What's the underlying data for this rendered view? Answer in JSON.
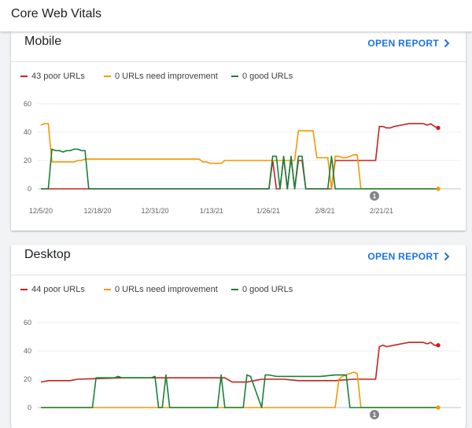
{
  "page": {
    "title": "Core Web Vitals"
  },
  "cards": [
    {
      "name": "Mobile",
      "action": "OPEN REPORT",
      "legend": [
        "43 poor URLs",
        "0 URLs need improvement",
        "0 good URLs"
      ],
      "chart_data": {
        "type": "line",
        "x_tick_labels": [
          "12/5/20",
          "12/18/20",
          "12/31/20",
          "1/13/21",
          "1/26/21",
          "2/8/21",
          "2/21/21"
        ],
        "y_tick_labels": [
          "0",
          "20",
          "40",
          "60"
        ],
        "ylim": [
          0,
          60
        ],
        "annotation": "1",
        "series": [
          {
            "name": "43 poor URLs",
            "color": "#c5221f",
            "x": [
              0,
              62,
              63,
              64,
              65,
              66,
              67,
              68,
              69,
              70,
              71,
              72,
              73,
              79,
              80,
              81,
              82,
              83,
              84,
              85,
              86,
              87,
              91,
              92,
              93,
              94,
              95,
              96,
              98,
              100,
              102,
              104,
              105,
              106,
              107,
              108
            ],
            "y": [
              0,
              0,
              20,
              0,
              0,
              22,
              0,
              22,
              0,
              20,
              20,
              0,
              0,
              0,
              20,
              20,
              20,
              20,
              20,
              20,
              20,
              20,
              20,
              44,
              44,
              43,
              43,
              44,
              45,
              46,
              46,
              46,
              45,
              46,
              44,
              43
            ]
          },
          {
            "name": "0 URLs need improvement",
            "color": "#f29900",
            "x": [
              0,
              1,
              2,
              3,
              9,
              10,
              11,
              12,
              43,
              44,
              45,
              46,
              48,
              49,
              50,
              60,
              61,
              62,
              63,
              64,
              65,
              66,
              67,
              68,
              69,
              70,
              73,
              74,
              75,
              76,
              77,
              78,
              79,
              80,
              81,
              82,
              83,
              84,
              85,
              86,
              87,
              88,
              108
            ],
            "y": [
              45,
              46,
              46,
              19,
              19,
              20,
              20,
              21,
              21,
              19,
              19,
              18,
              18,
              18,
              20,
              20,
              20,
              20,
              20,
              20,
              20,
              20,
              20,
              20,
              20,
              41,
              41,
              41,
              22,
              22,
              22,
              22,
              0,
              23,
              23,
              22,
              22,
              23,
              24,
              24,
              0,
              0,
              0
            ]
          },
          {
            "name": "0 good URLs",
            "color": "#188038",
            "x": [
              0,
              2,
              3,
              4,
              5,
              6,
              7,
              8,
              9,
              10,
              11,
              12,
              13,
              62,
              63,
              64,
              65,
              66,
              67,
              68,
              69,
              70,
              71,
              72,
              73,
              77,
              78,
              79,
              80,
              108
            ],
            "y": [
              0,
              0,
              28,
              27,
              27,
              26,
              27,
              27,
              28,
              28,
              27,
              27,
              0,
              0,
              23,
              23,
              0,
              23,
              0,
              23,
              0,
              23,
              23,
              0,
              0,
              0,
              0,
              23,
              0,
              0
            ]
          }
        ]
      }
    },
    {
      "name": "Desktop",
      "action": "OPEN REPORT",
      "legend": [
        "44 poor URLs",
        "0 URLs need improvement",
        "0 good URLs"
      ],
      "chart_data": {
        "type": "line",
        "y_tick_labels": [
          "0",
          "20",
          "40",
          "60"
        ],
        "ylim": [
          0,
          60
        ],
        "annotation": "1",
        "series": [
          {
            "name": "44 poor URLs",
            "color": "#c5221f",
            "x": [
              0,
              2,
              8,
              10,
              22,
              30,
              40,
              50,
              52,
              54,
              56,
              58,
              60,
              66,
              70,
              76,
              80,
              85,
              87,
              88,
              90,
              91,
              92,
              93,
              94,
              96,
              98,
              100,
              102,
              104,
              105,
              106,
              107,
              108
            ],
            "y": [
              18,
              19,
              19,
              20,
              21,
              21,
              21,
              21,
              18,
              18,
              18,
              19,
              20,
              20,
              19,
              19,
              19,
              20,
              20,
              20,
              20,
              20,
              43,
              44,
              43,
              44,
              45,
              46,
              46,
              46,
              45,
              46,
              44,
              44
            ]
          },
          {
            "name": "0 URLs need improvement",
            "color": "#f29900",
            "x": [
              0,
              80,
              81,
              82,
              83,
              84,
              85,
              86,
              87,
              88,
              108
            ],
            "y": [
              0,
              0,
              20,
              22,
              23,
              24,
              25,
              24,
              0,
              0,
              0
            ]
          },
          {
            "name": "0 good URLs",
            "color": "#188038",
            "x": [
              0,
              14,
              15,
              20,
              21,
              22,
              23,
              30,
              31,
              32,
              33,
              34,
              35,
              48,
              49,
              50,
              55,
              56,
              57,
              60,
              61,
              62,
              64,
              68,
              72,
              76,
              80,
              81,
              83,
              84,
              85,
              108
            ],
            "y": [
              0,
              0,
              21,
              21,
              22,
              21,
              21,
              21,
              22,
              0,
              0,
              23,
              0,
              0,
              23,
              0,
              0,
              23,
              22,
              0,
              23,
              23,
              22,
              22,
              22,
              22,
              23,
              23,
              23,
              0,
              0,
              0
            ]
          }
        ]
      }
    }
  ]
}
